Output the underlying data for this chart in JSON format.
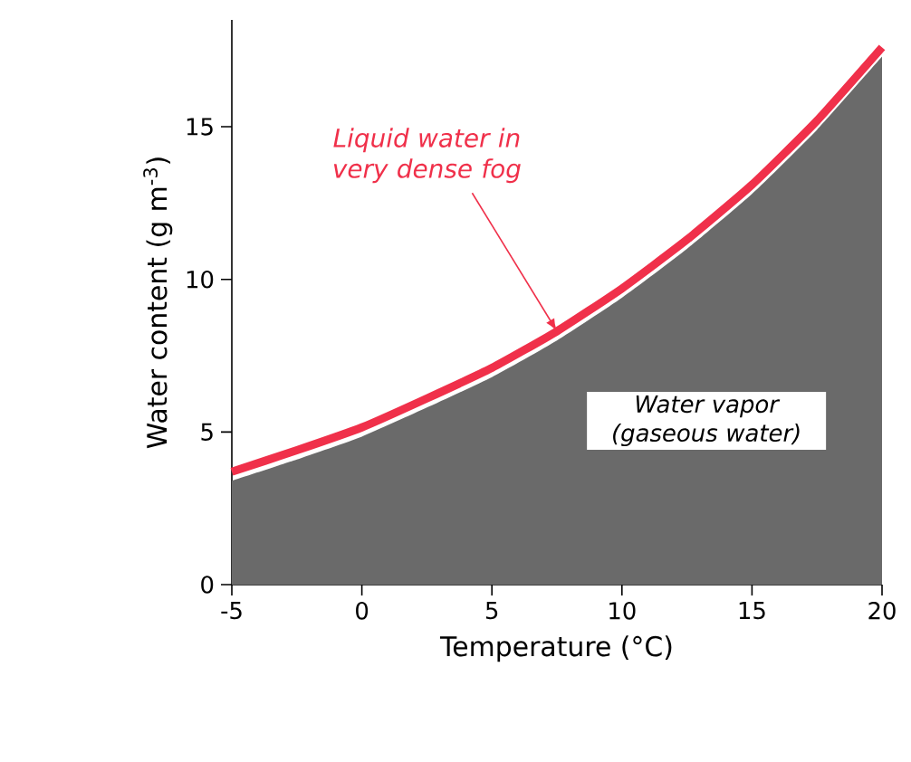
{
  "chart_data": {
    "type": "area",
    "xlabel": "Temperature (°C)",
    "ylabel": "Water content (g m$^{-3}$)",
    "x": [
      -5,
      -2.5,
      0,
      2.5,
      5,
      7.5,
      10,
      12.5,
      15,
      17.5,
      20
    ],
    "series": [
      {
        "color": "#6a6a6a",
        "values": [
          3.4,
          4.1,
          4.85,
          5.8,
          6.8,
          8.0,
          9.4,
          11.0,
          12.8,
          14.9,
          17.3
        ]
      },
      {
        "type": "line",
        "color": "#f0304a",
        "values": [
          3.7,
          4.4,
          5.15,
          6.1,
          7.1,
          8.3,
          9.7,
          11.3,
          13.1,
          15.2,
          17.6
        ]
      }
    ],
    "xlim": [
      -5,
      20
    ],
    "xticks": [
      -5,
      0,
      5,
      10,
      15,
      20
    ],
    "ylim": [
      0,
      18.5
    ],
    "yticks": [
      0,
      5,
      10,
      15
    ],
    "annotations": [
      {
        "text": "Liquid water in very dense fog",
        "x": 7.5,
        "y": 8.3
      },
      "Water vapor (gaseous water)"
    ],
    "grid": false
  }
}
